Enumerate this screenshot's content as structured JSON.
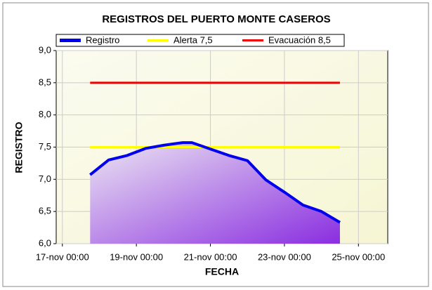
{
  "chart_data": {
    "type": "line",
    "title": "REGISTROS DEL PUERTO MONTE CASEROS",
    "x_label": "FECHA",
    "y_label": "REGISTRO",
    "x": [
      "17-nov 18:00",
      "18-nov 06:00",
      "18-nov 18:00",
      "19-nov 06:00",
      "19-nov 18:00",
      "20-nov 06:00",
      "20-nov 12:00",
      "21-nov 00:00",
      "21-nov 12:00",
      "22-nov 00:00",
      "22-nov 12:00",
      "23-nov 00:00",
      "23-nov 12:00",
      "24-nov 00:00",
      "24-nov 12:00"
    ],
    "series": [
      {
        "name": "Registro",
        "color": "#0000ee",
        "values": [
          7.07,
          7.3,
          7.37,
          7.48,
          7.53,
          7.57,
          7.57,
          7.47,
          7.37,
          7.29,
          6.99,
          6.8,
          6.6,
          6.5,
          6.33
        ]
      },
      {
        "name": "Alerta 7,5",
        "color": "#ffff00",
        "values": [
          7.5,
          7.5,
          7.5,
          7.5,
          7.5,
          7.5,
          7.5,
          7.5,
          7.5,
          7.5,
          7.5,
          7.5,
          7.5,
          7.5,
          7.5
        ]
      },
      {
        "name": "Evacuación 8,5",
        "color": "#ee0000",
        "values": [
          8.5,
          8.5,
          8.5,
          8.5,
          8.5,
          8.5,
          8.5,
          8.5,
          8.5,
          8.5,
          8.5,
          8.5,
          8.5,
          8.5,
          8.5
        ]
      }
    ],
    "xlim": [
      "16-nov 20:00",
      "25-nov 19:00"
    ],
    "xticks": [
      "17-nov 00:00",
      "19-nov 00:00",
      "21-nov 00:00",
      "23-nov 00:00",
      "25-nov 00:00"
    ],
    "ylim": [
      6,
      9
    ],
    "yticks": [
      {
        "value": 6,
        "label": "6,0"
      },
      {
        "value": 6.5,
        "label": "6,5"
      },
      {
        "value": 7,
        "label": "7,0"
      },
      {
        "value": 7.5,
        "label": "7,5"
      },
      {
        "value": 8,
        "label": "8,0"
      },
      {
        "value": 8.5,
        "label": "8,5"
      },
      {
        "value": 9,
        "label": "9,0"
      }
    ],
    "grid": true
  }
}
